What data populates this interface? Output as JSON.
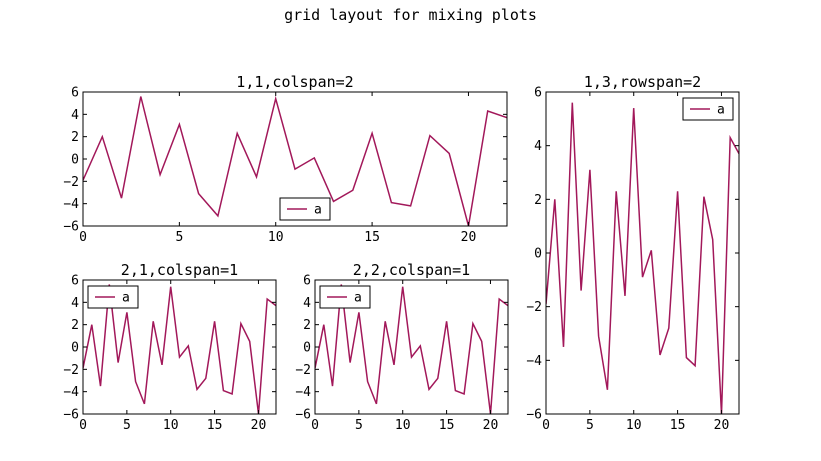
{
  "figure": {
    "suptitle": "grid layout for mixing plots",
    "series_color": "#a2185a"
  },
  "chart_data": [
    {
      "type": "line",
      "title": "1,1,colspan=2",
      "xlim": [
        0,
        22
      ],
      "ylim": [
        -6,
        6
      ],
      "xticks": [
        0,
        5,
        10,
        15,
        20
      ],
      "yticks": [
        -6,
        -4,
        -2,
        0,
        2,
        4,
        6
      ],
      "legend": "lower-center",
      "grid": false,
      "series": [
        {
          "name": "a",
          "color": "#a2185a",
          "x": [
            0,
            1,
            2,
            3,
            4,
            5,
            6,
            7,
            8,
            9,
            10,
            11,
            12,
            13,
            14,
            15,
            16,
            17,
            18,
            19,
            20,
            21,
            22
          ],
          "y": [
            -1.9,
            2.0,
            -3.5,
            5.6,
            -1.4,
            3.1,
            -3.1,
            -5.1,
            2.3,
            -1.6,
            5.4,
            -0.9,
            0.1,
            -3.8,
            -2.8,
            2.3,
            -3.9,
            -4.2,
            2.1,
            0.5,
            -6.0,
            4.3,
            3.7
          ]
        }
      ]
    },
    {
      "type": "line",
      "title": "1,3,rowspan=2",
      "xlim": [
        0,
        22
      ],
      "ylim": [
        -6,
        6
      ],
      "xticks": [
        0,
        5,
        10,
        15,
        20
      ],
      "yticks": [
        -6,
        -4,
        -2,
        0,
        2,
        4,
        6
      ],
      "legend": "upper-right",
      "grid": false,
      "series": [
        {
          "name": "a",
          "color": "#a2185a",
          "x": [
            0,
            1,
            2,
            3,
            4,
            5,
            6,
            7,
            8,
            9,
            10,
            11,
            12,
            13,
            14,
            15,
            16,
            17,
            18,
            19,
            20,
            21,
            22
          ],
          "y": [
            -1.9,
            2.0,
            -3.5,
            5.6,
            -1.4,
            3.1,
            -3.1,
            -5.1,
            2.3,
            -1.6,
            5.4,
            -0.9,
            0.1,
            -3.8,
            -2.8,
            2.3,
            -3.9,
            -4.2,
            2.1,
            0.5,
            -6.0,
            4.3,
            3.7
          ]
        }
      ]
    },
    {
      "type": "line",
      "title": "2,1,colspan=1",
      "xlim": [
        0,
        22
      ],
      "ylim": [
        -6,
        6
      ],
      "xticks": [
        0,
        5,
        10,
        15,
        20
      ],
      "yticks": [
        -6,
        -4,
        -2,
        0,
        2,
        4,
        6
      ],
      "legend": "upper-left",
      "grid": false,
      "series": [
        {
          "name": "a",
          "color": "#a2185a",
          "x": [
            0,
            1,
            2,
            3,
            4,
            5,
            6,
            7,
            8,
            9,
            10,
            11,
            12,
            13,
            14,
            15,
            16,
            17,
            18,
            19,
            20,
            21,
            22
          ],
          "y": [
            -1.9,
            2.0,
            -3.5,
            5.6,
            -1.4,
            3.1,
            -3.1,
            -5.1,
            2.3,
            -1.6,
            5.4,
            -0.9,
            0.1,
            -3.8,
            -2.8,
            2.3,
            -3.9,
            -4.2,
            2.1,
            0.5,
            -6.0,
            4.3,
            3.7
          ]
        }
      ]
    },
    {
      "type": "line",
      "title": "2,2,colspan=1",
      "xlim": [
        0,
        22
      ],
      "ylim": [
        -6,
        6
      ],
      "xticks": [
        0,
        5,
        10,
        15,
        20
      ],
      "yticks": [
        -6,
        -4,
        -2,
        0,
        2,
        4,
        6
      ],
      "legend": "upper-left",
      "grid": false,
      "series": [
        {
          "name": "a",
          "color": "#a2185a",
          "x": [
            0,
            1,
            2,
            3,
            4,
            5,
            6,
            7,
            8,
            9,
            10,
            11,
            12,
            13,
            14,
            15,
            16,
            17,
            18,
            19,
            20,
            21,
            22
          ],
          "y": [
            -1.9,
            2.0,
            -3.5,
            5.6,
            -1.4,
            3.1,
            -3.1,
            -5.1,
            2.3,
            -1.6,
            5.4,
            -0.9,
            0.1,
            -3.8,
            -2.8,
            2.3,
            -3.9,
            -4.2,
            2.1,
            0.5,
            -6.0,
            4.3,
            3.7
          ]
        }
      ]
    }
  ]
}
